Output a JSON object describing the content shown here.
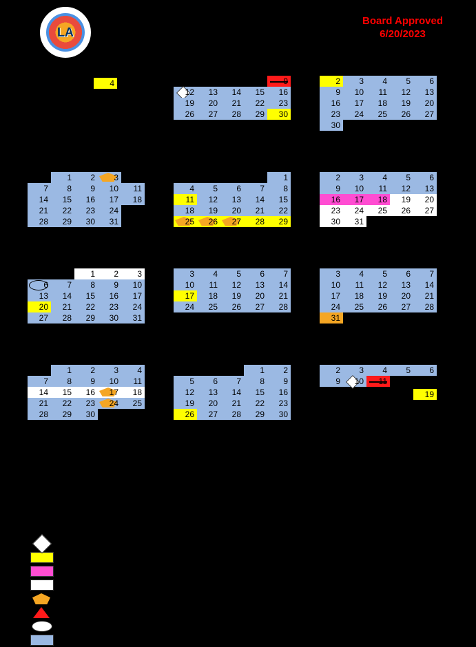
{
  "header": {
    "logo_text": "LA",
    "approved_title": "Board Approved",
    "approved_date": "6/20/2023"
  },
  "colors": {
    "blue": "#9bb9e3",
    "yellow": "#ffff00",
    "white": "#ffffff",
    "pink": "#ff4dd2",
    "orange": "#f5a623",
    "red": "#ff1a1a"
  },
  "months": {
    "july": {
      "special": "4"
    },
    "august": {
      "weeks": [
        [
          null,
          null,
          null,
          null,
          {
            "n": "9",
            "cls": "red redtri strike"
          }
        ],
        [
          {
            "n": "12",
            "cls": "blue diamond"
          },
          {
            "n": "13",
            "cls": "blue"
          },
          {
            "n": "14",
            "cls": "blue"
          },
          {
            "n": "15",
            "cls": "blue"
          },
          {
            "n": "16",
            "cls": "blue"
          }
        ],
        [
          {
            "n": "19",
            "cls": "blue"
          },
          {
            "n": "20",
            "cls": "blue"
          },
          {
            "n": "21",
            "cls": "blue"
          },
          {
            "n": "22",
            "cls": "blue"
          },
          {
            "n": "23",
            "cls": "blue"
          }
        ],
        [
          {
            "n": "26",
            "cls": "blue"
          },
          {
            "n": "27",
            "cls": "blue"
          },
          {
            "n": "28",
            "cls": "blue"
          },
          {
            "n": "29",
            "cls": "blue"
          },
          {
            "n": "30",
            "cls": "yellow"
          }
        ]
      ]
    },
    "september": {
      "weeks": [
        [
          {
            "n": "2",
            "cls": "yellow"
          },
          {
            "n": "3",
            "cls": "blue"
          },
          {
            "n": "4",
            "cls": "blue"
          },
          {
            "n": "5",
            "cls": "blue"
          },
          {
            "n": "6",
            "cls": "blue"
          }
        ],
        [
          {
            "n": "9",
            "cls": "blue"
          },
          {
            "n": "10",
            "cls": "blue"
          },
          {
            "n": "11",
            "cls": "blue"
          },
          {
            "n": "12",
            "cls": "blue"
          },
          {
            "n": "13",
            "cls": "blue"
          }
        ],
        [
          {
            "n": "16",
            "cls": "blue"
          },
          {
            "n": "17",
            "cls": "blue"
          },
          {
            "n": "18",
            "cls": "blue"
          },
          {
            "n": "19",
            "cls": "blue"
          },
          {
            "n": "20",
            "cls": "blue"
          }
        ],
        [
          {
            "n": "23",
            "cls": "blue"
          },
          {
            "n": "24",
            "cls": "blue"
          },
          {
            "n": "25",
            "cls": "blue"
          },
          {
            "n": "26",
            "cls": "blue"
          },
          {
            "n": "27",
            "cls": "blue"
          }
        ],
        [
          {
            "n": "30",
            "cls": "blue"
          },
          null,
          null,
          null,
          null
        ]
      ]
    },
    "october": {
      "weeks": [
        [
          null,
          {
            "n": "1",
            "cls": "blue"
          },
          {
            "n": "2",
            "cls": "blue"
          },
          {
            "n": "3",
            "cls": "blue pentagon"
          },
          null
        ],
        [
          {
            "n": "7",
            "cls": "blue"
          },
          {
            "n": "8",
            "cls": "blue"
          },
          {
            "n": "9",
            "cls": "blue"
          },
          {
            "n": "10",
            "cls": "blue"
          },
          {
            "n": "11",
            "cls": "blue"
          }
        ],
        [
          {
            "n": "14",
            "cls": "blue"
          },
          {
            "n": "15",
            "cls": "blue"
          },
          {
            "n": "16",
            "cls": "blue"
          },
          {
            "n": "17",
            "cls": "blue"
          },
          {
            "n": "18",
            "cls": "blue"
          }
        ],
        [
          {
            "n": "21",
            "cls": "blue"
          },
          {
            "n": "22",
            "cls": "blue"
          },
          {
            "n": "23",
            "cls": "blue"
          },
          {
            "n": "24",
            "cls": "blue"
          },
          null
        ],
        [
          {
            "n": "28",
            "cls": "blue"
          },
          {
            "n": "29",
            "cls": "blue"
          },
          {
            "n": "30",
            "cls": "blue"
          },
          {
            "n": "31",
            "cls": "blue"
          },
          null
        ]
      ]
    },
    "november": {
      "weeks": [
        [
          null,
          null,
          null,
          null,
          {
            "n": "1",
            "cls": "blue"
          }
        ],
        [
          {
            "n": "4",
            "cls": "blue"
          },
          {
            "n": "5",
            "cls": "blue"
          },
          {
            "n": "6",
            "cls": "blue"
          },
          {
            "n": "7",
            "cls": "blue"
          },
          {
            "n": "8",
            "cls": "blue"
          }
        ],
        [
          {
            "n": "11",
            "cls": "yellow"
          },
          {
            "n": "12",
            "cls": "blue"
          },
          {
            "n": "13",
            "cls": "blue"
          },
          {
            "n": "14",
            "cls": "blue"
          },
          {
            "n": "15",
            "cls": "blue"
          }
        ],
        [
          {
            "n": "18",
            "cls": "blue"
          },
          {
            "n": "19",
            "cls": "blue"
          },
          {
            "n": "20",
            "cls": "blue"
          },
          {
            "n": "21",
            "cls": "blue"
          },
          {
            "n": "22",
            "cls": "blue"
          }
        ],
        [
          {
            "n": "25",
            "cls": "yellow pentagon"
          },
          {
            "n": "26",
            "cls": "yellow pentagon"
          },
          {
            "n": "27",
            "cls": "yellow pentagon"
          },
          {
            "n": "28",
            "cls": "yellow"
          },
          {
            "n": "29",
            "cls": "yellow"
          }
        ]
      ]
    },
    "december": {
      "weeks": [
        [
          {
            "n": "2",
            "cls": "blue"
          },
          {
            "n": "3",
            "cls": "blue"
          },
          {
            "n": "4",
            "cls": "blue"
          },
          {
            "n": "5",
            "cls": "blue"
          },
          {
            "n": "6",
            "cls": "blue"
          }
        ],
        [
          {
            "n": "9",
            "cls": "blue"
          },
          {
            "n": "10",
            "cls": "blue"
          },
          {
            "n": "11",
            "cls": "blue"
          },
          {
            "n": "12",
            "cls": "blue"
          },
          {
            "n": "13",
            "cls": "blue"
          }
        ],
        [
          {
            "n": "16",
            "cls": "pink"
          },
          {
            "n": "17",
            "cls": "pink"
          },
          {
            "n": "18",
            "cls": "pink"
          },
          {
            "n": "19",
            "cls": "white"
          },
          {
            "n": "20",
            "cls": "white"
          }
        ],
        [
          {
            "n": "23",
            "cls": "white"
          },
          {
            "n": "24",
            "cls": "white"
          },
          {
            "n": "25",
            "cls": "white"
          },
          {
            "n": "26",
            "cls": "white"
          },
          {
            "n": "27",
            "cls": "white"
          }
        ],
        [
          {
            "n": "30",
            "cls": "white"
          },
          {
            "n": "31",
            "cls": "white"
          },
          null,
          null,
          null
        ]
      ]
    },
    "january": {
      "weeks": [
        [
          null,
          null,
          {
            "n": "1",
            "cls": "white"
          },
          {
            "n": "2",
            "cls": "white"
          },
          {
            "n": "3",
            "cls": "white"
          }
        ],
        [
          {
            "n": "6",
            "cls": "blue ellipse-blue"
          },
          {
            "n": "7",
            "cls": "blue"
          },
          {
            "n": "8",
            "cls": "blue"
          },
          {
            "n": "9",
            "cls": "blue"
          },
          {
            "n": "10",
            "cls": "blue"
          }
        ],
        [
          {
            "n": "13",
            "cls": "blue"
          },
          {
            "n": "14",
            "cls": "blue"
          },
          {
            "n": "15",
            "cls": "blue"
          },
          {
            "n": "16",
            "cls": "blue"
          },
          {
            "n": "17",
            "cls": "blue"
          }
        ],
        [
          {
            "n": "20",
            "cls": "yellow"
          },
          {
            "n": "21",
            "cls": "blue"
          },
          {
            "n": "22",
            "cls": "blue"
          },
          {
            "n": "23",
            "cls": "blue"
          },
          {
            "n": "24",
            "cls": "blue"
          }
        ],
        [
          {
            "n": "27",
            "cls": "blue"
          },
          {
            "n": "28",
            "cls": "blue"
          },
          {
            "n": "29",
            "cls": "blue"
          },
          {
            "n": "30",
            "cls": "blue"
          },
          {
            "n": "31",
            "cls": "blue"
          }
        ]
      ]
    },
    "february": {
      "weeks": [
        [
          {
            "n": "3",
            "cls": "blue"
          },
          {
            "n": "4",
            "cls": "blue"
          },
          {
            "n": "5",
            "cls": "blue"
          },
          {
            "n": "6",
            "cls": "blue"
          },
          {
            "n": "7",
            "cls": "blue"
          }
        ],
        [
          {
            "n": "10",
            "cls": "blue"
          },
          {
            "n": "11",
            "cls": "blue"
          },
          {
            "n": "12",
            "cls": "blue"
          },
          {
            "n": "13",
            "cls": "blue"
          },
          {
            "n": "14",
            "cls": "blue"
          }
        ],
        [
          {
            "n": "17",
            "cls": "yellow"
          },
          {
            "n": "18",
            "cls": "blue"
          },
          {
            "n": "19",
            "cls": "blue"
          },
          {
            "n": "20",
            "cls": "blue"
          },
          {
            "n": "21",
            "cls": "blue"
          }
        ],
        [
          {
            "n": "24",
            "cls": "blue"
          },
          {
            "n": "25",
            "cls": "blue"
          },
          {
            "n": "26",
            "cls": "blue"
          },
          {
            "n": "27",
            "cls": "blue"
          },
          {
            "n": "28",
            "cls": "blue"
          }
        ]
      ]
    },
    "march": {
      "weeks": [
        [
          {
            "n": "3",
            "cls": "blue"
          },
          {
            "n": "4",
            "cls": "blue"
          },
          {
            "n": "5",
            "cls": "blue"
          },
          {
            "n": "6",
            "cls": "blue"
          },
          {
            "n": "7",
            "cls": "blue"
          }
        ],
        [
          {
            "n": "10",
            "cls": "blue"
          },
          {
            "n": "11",
            "cls": "blue"
          },
          {
            "n": "12",
            "cls": "blue"
          },
          {
            "n": "13",
            "cls": "blue"
          },
          {
            "n": "14",
            "cls": "blue"
          }
        ],
        [
          {
            "n": "17",
            "cls": "blue"
          },
          {
            "n": "18",
            "cls": "blue"
          },
          {
            "n": "19",
            "cls": "blue"
          },
          {
            "n": "20",
            "cls": "blue"
          },
          {
            "n": "21",
            "cls": "blue"
          }
        ],
        [
          {
            "n": "24",
            "cls": "blue"
          },
          {
            "n": "25",
            "cls": "blue"
          },
          {
            "n": "26",
            "cls": "blue"
          },
          {
            "n": "27",
            "cls": "blue"
          },
          {
            "n": "28",
            "cls": "blue"
          }
        ],
        [
          {
            "n": "31",
            "cls": "orange pentagon"
          },
          null,
          null,
          null,
          null
        ]
      ]
    },
    "april": {
      "weeks": [
        [
          null,
          {
            "n": "1",
            "cls": "blue"
          },
          {
            "n": "2",
            "cls": "blue"
          },
          {
            "n": "3",
            "cls": "blue"
          },
          {
            "n": "4",
            "cls": "blue"
          }
        ],
        [
          {
            "n": "7",
            "cls": "blue"
          },
          {
            "n": "8",
            "cls": "blue"
          },
          {
            "n": "9",
            "cls": "blue"
          },
          {
            "n": "10",
            "cls": "blue"
          },
          {
            "n": "11",
            "cls": "blue"
          }
        ],
        [
          {
            "n": "14",
            "cls": "white"
          },
          {
            "n": "15",
            "cls": "white"
          },
          {
            "n": "16",
            "cls": "white"
          },
          {
            "n": "17",
            "cls": "white pentagon"
          },
          {
            "n": "18",
            "cls": "white"
          }
        ],
        [
          {
            "n": "21",
            "cls": "blue"
          },
          {
            "n": "22",
            "cls": "blue"
          },
          {
            "n": "23",
            "cls": "blue"
          },
          {
            "n": "24",
            "cls": "blue pentagon"
          },
          {
            "n": "25",
            "cls": "blue"
          }
        ],
        [
          {
            "n": "28",
            "cls": "blue"
          },
          {
            "n": "29",
            "cls": "blue"
          },
          {
            "n": "30",
            "cls": "blue"
          },
          null,
          null
        ]
      ]
    },
    "may": {
      "weeks": [
        [
          null,
          null,
          null,
          {
            "n": "1",
            "cls": "blue"
          },
          {
            "n": "2",
            "cls": "blue"
          }
        ],
        [
          {
            "n": "5",
            "cls": "blue"
          },
          {
            "n": "6",
            "cls": "blue"
          },
          {
            "n": "7",
            "cls": "blue"
          },
          {
            "n": "8",
            "cls": "blue"
          },
          {
            "n": "9",
            "cls": "blue"
          }
        ],
        [
          {
            "n": "12",
            "cls": "blue"
          },
          {
            "n": "13",
            "cls": "blue"
          },
          {
            "n": "14",
            "cls": "blue"
          },
          {
            "n": "15",
            "cls": "blue"
          },
          {
            "n": "16",
            "cls": "blue"
          }
        ],
        [
          {
            "n": "19",
            "cls": "blue"
          },
          {
            "n": "20",
            "cls": "blue"
          },
          {
            "n": "21",
            "cls": "blue"
          },
          {
            "n": "22",
            "cls": "blue"
          },
          {
            "n": "23",
            "cls": "blue"
          }
        ],
        [
          {
            "n": "26",
            "cls": "yellow"
          },
          {
            "n": "27",
            "cls": "blue"
          },
          {
            "n": "28",
            "cls": "blue"
          },
          {
            "n": "29",
            "cls": "blue"
          },
          {
            "n": "30",
            "cls": "blue"
          }
        ]
      ]
    },
    "june": {
      "weeks": [
        [
          {
            "n": "2",
            "cls": "blue"
          },
          {
            "n": "3",
            "cls": "blue"
          },
          {
            "n": "4",
            "cls": "blue"
          },
          {
            "n": "5",
            "cls": "blue"
          },
          {
            "n": "6",
            "cls": "blue"
          }
        ],
        [
          {
            "n": "9",
            "cls": "blue"
          },
          {
            "n": "10",
            "cls": "blue diamond"
          },
          {
            "n": "11",
            "cls": "red redtri strike"
          },
          null,
          null
        ]
      ],
      "extra": {
        "n": "19",
        "cls": "yellow"
      }
    }
  }
}
